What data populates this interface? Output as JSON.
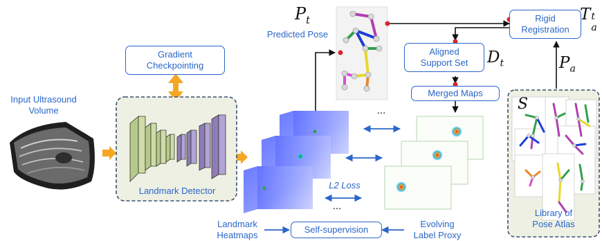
{
  "labels": {
    "input_volume": "Input Ultrasound\nVolume",
    "gradient_checkpointing": "Gradient\nCheckpointing",
    "landmark_detector": "Landmark Detector",
    "predicted_pose": "Predicted Pose",
    "rigid_registration": "Rigid\nRegistration",
    "aligned_support_set": "Aligned\nSupport Set",
    "merged_maps": "Merged Maps",
    "l2_loss": "L2 Loss",
    "landmark_heatmaps": "Landmark\nHeatmaps",
    "self_supervision": "Self-supervision",
    "evolving_label_proxy": "Evolving\nLabel Proxy",
    "library_of_pose_atlas": "Library of\nPose Atlas",
    "ellipsis": "..."
  },
  "math": {
    "P": "P",
    "t": "t",
    "T": "T",
    "a": "a",
    "D": "D",
    "S": "S"
  },
  "colors": {
    "accent_blue": "#2a66c9",
    "arrow_orange": "#f5a623",
    "panel_bg": "#eef0e3",
    "panel_border": "#3b5070",
    "marker_red": "#d7262e"
  }
}
